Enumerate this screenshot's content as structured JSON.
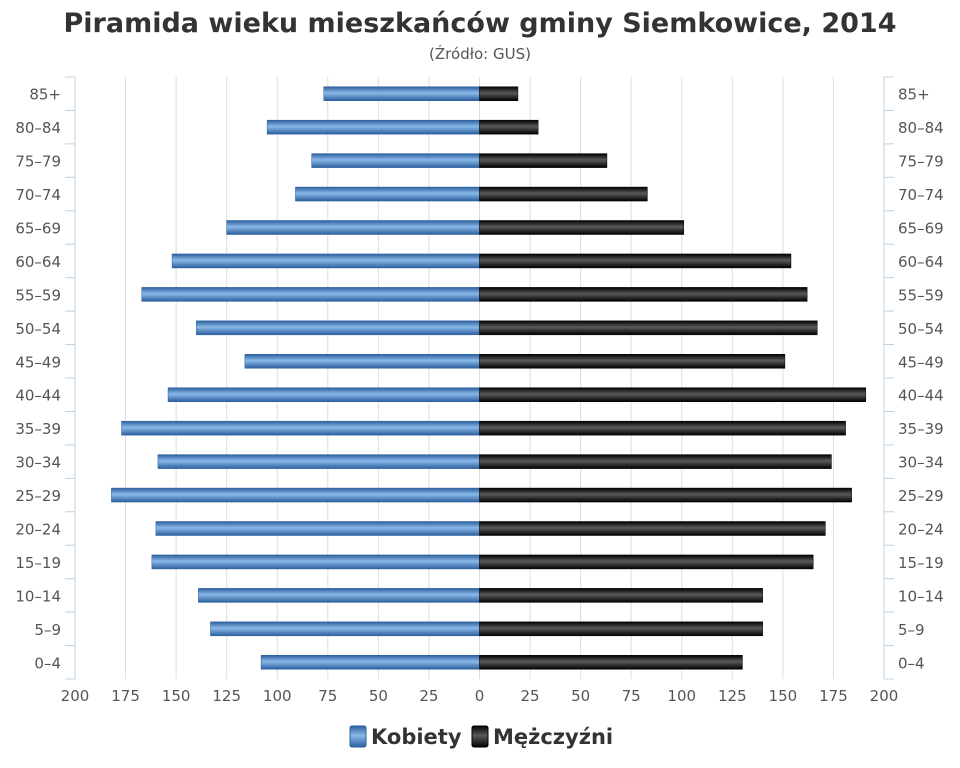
{
  "chart_data": {
    "type": "bar",
    "orientation": "horizontal",
    "layout": "population-pyramid",
    "title": "Piramida wieku mieszkańców gminy Siemkowice, 2014",
    "subtitle": "(Źródło: GUS)",
    "categories": [
      "0–4",
      "5–9",
      "10–14",
      "15–19",
      "20–24",
      "25–29",
      "30–34",
      "35–39",
      "40–44",
      "45–49",
      "50–54",
      "55–59",
      "60–64",
      "65–69",
      "70–74",
      "75–79",
      "80–84",
      "85+"
    ],
    "series": [
      {
        "name": "Kobiety",
        "side": "left",
        "color": "#3d7ac0",
        "values": [
          108,
          133,
          139,
          162,
          160,
          182,
          159,
          177,
          154,
          116,
          140,
          167,
          152,
          125,
          91,
          83,
          105,
          77
        ]
      },
      {
        "name": "Mężczyźni",
        "side": "right",
        "color": "#1a1a1a",
        "values": [
          130,
          140,
          140,
          165,
          171,
          184,
          174,
          181,
          191,
          151,
          167,
          162,
          154,
          101,
          83,
          63,
          29,
          19
        ]
      }
    ],
    "xlim": [
      -200,
      200
    ],
    "xticks": [
      "200",
      "175",
      "150",
      "125",
      "100",
      "75",
      "50",
      "25",
      "0",
      "25",
      "50",
      "75",
      "100",
      "125",
      "150",
      "175",
      "200"
    ],
    "grid": true,
    "legend_position": "bottom-center"
  }
}
